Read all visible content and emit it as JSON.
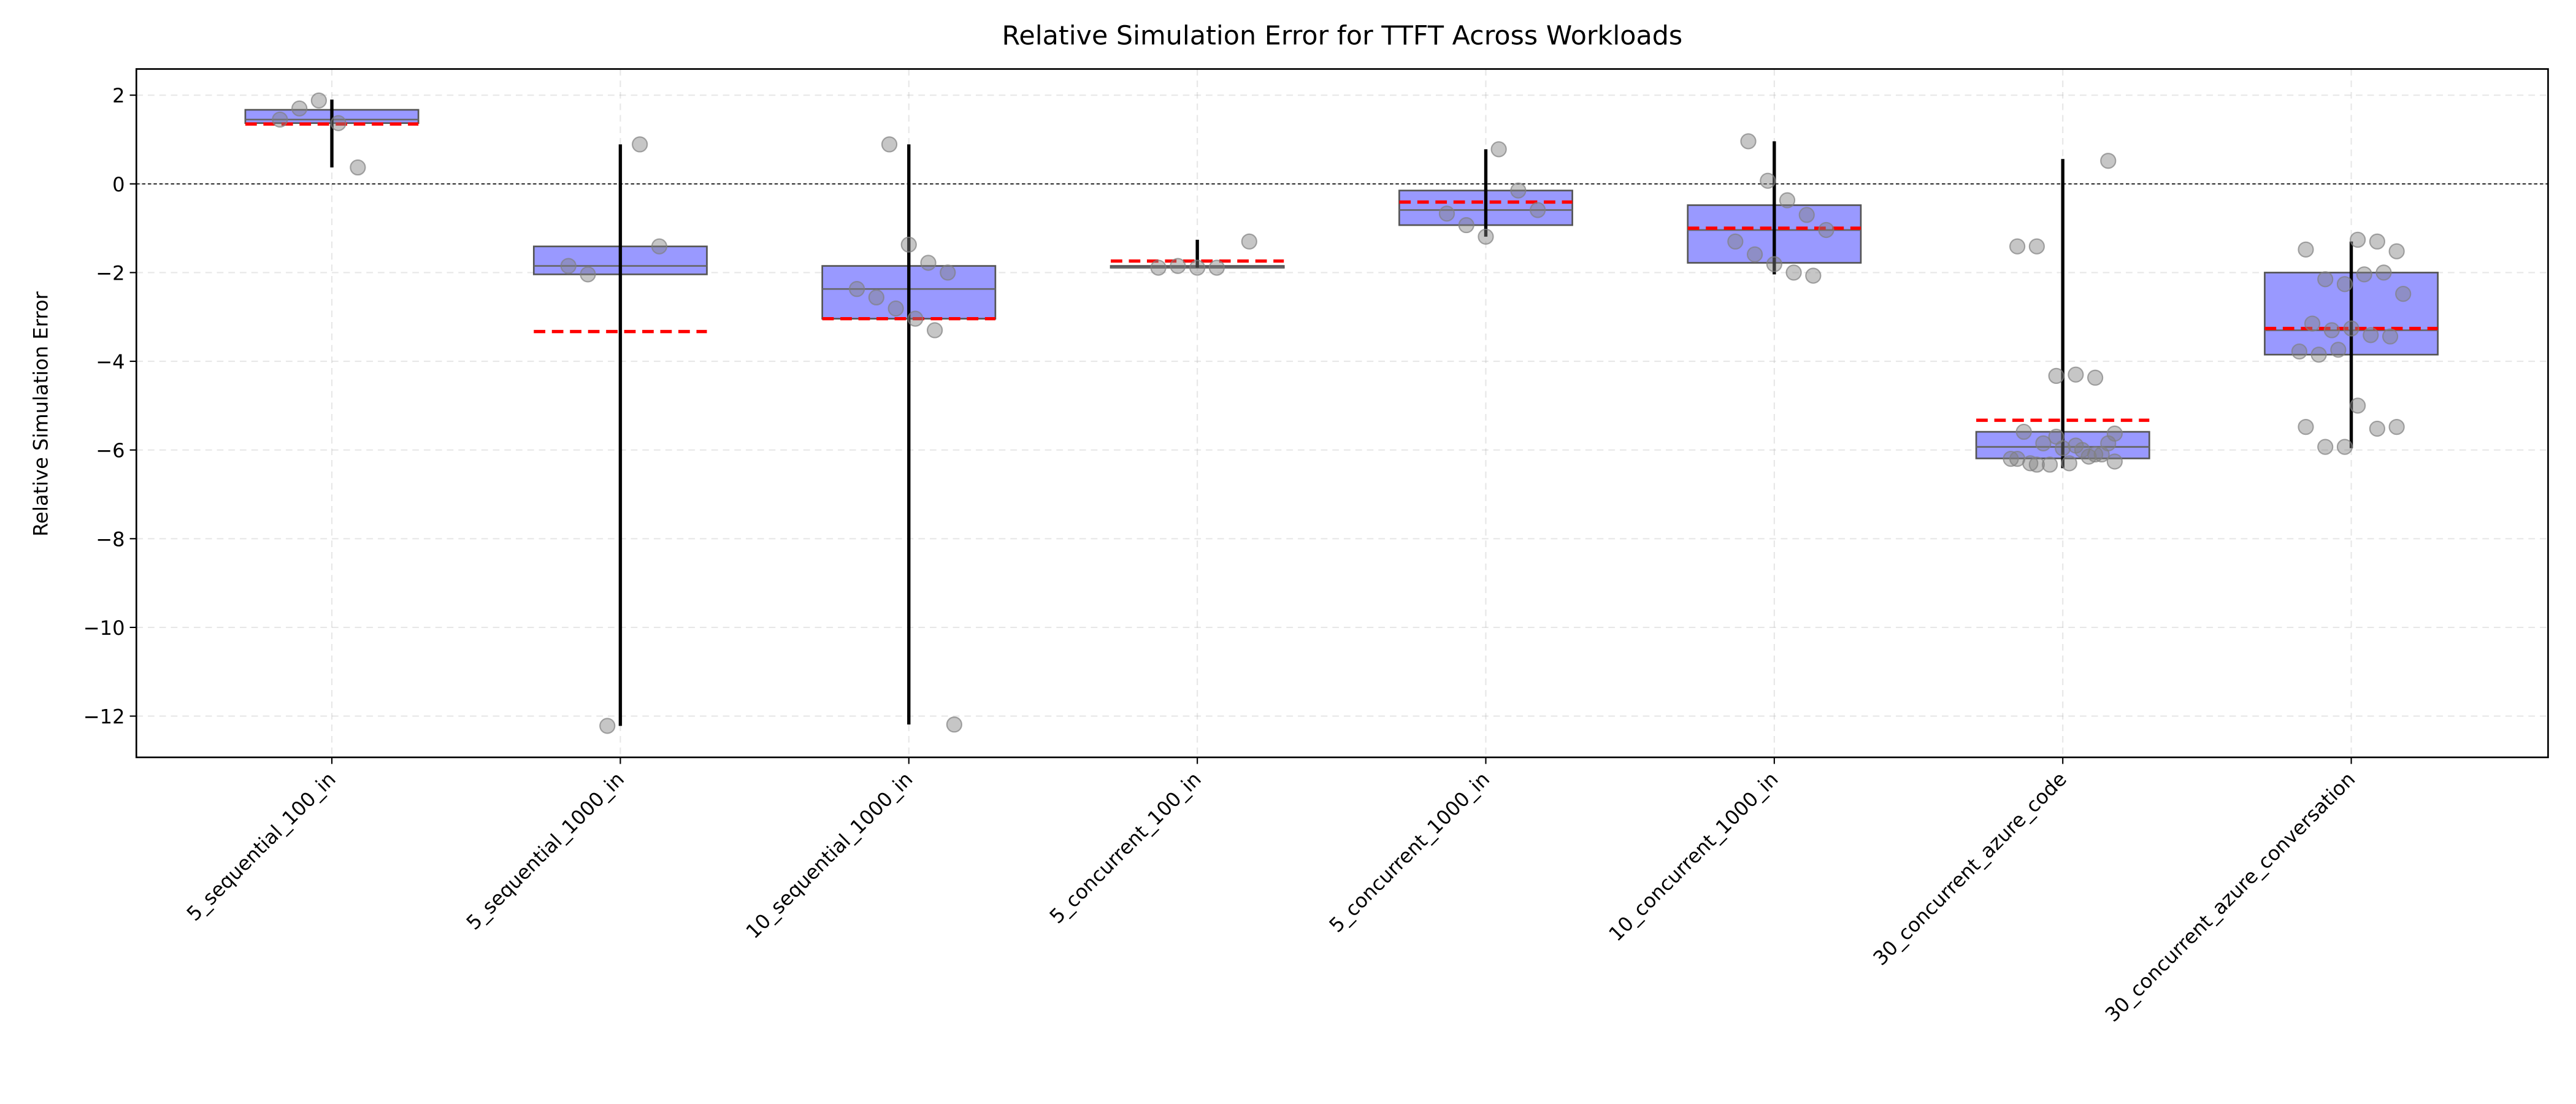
{
  "chart_data": {
    "type": "box",
    "title": "Relative Simulation Error for TTFT Across Workloads",
    "ylabel": "Relative Simulation Error",
    "categories": [
      "5_sequential_100_in",
      "5_sequential_1000_in",
      "10_sequential_1000_in",
      "5_concurrent_100_in",
      "5_concurrent_1000_in",
      "10_concurrent_1000_in",
      "30_concurrent_azure_code",
      "30_concurrent_azure_conversation"
    ],
    "boxes": [
      {
        "q1": 1.37,
        "median": 1.45,
        "q3": 1.67,
        "whislo": 0.37,
        "whishi": 1.9,
        "mean": 1.35,
        "points": [
          1.45,
          1.7,
          1.88,
          1.37,
          0.37
        ]
      },
      {
        "q1": -2.04,
        "median": -1.85,
        "q3": -1.41,
        "whislo": -12.22,
        "whishi": 0.89,
        "mean": -3.33,
        "points": [
          0.89,
          -1.41,
          -1.85,
          -2.04,
          -12.22
        ]
      },
      {
        "q1": -3.04,
        "median": -2.37,
        "q3": -1.85,
        "whislo": -12.19,
        "whishi": 0.89,
        "mean": -3.04,
        "points": [
          0.89,
          -1.37,
          -1.78,
          -2.0,
          -2.37,
          -2.56,
          -2.81,
          -3.04,
          -3.3,
          -12.19
        ]
      },
      {
        "q1": -1.89,
        "median": -1.89,
        "q3": -1.85,
        "whislo": -1.89,
        "whishi": -1.26,
        "mean": -1.74,
        "points": [
          -1.3,
          -1.89,
          -1.85,
          -1.89,
          -1.89
        ]
      },
      {
        "q1": -0.93,
        "median": -0.59,
        "q3": -0.15,
        "whislo": -1.19,
        "whishi": 0.78,
        "mean": -0.41,
        "points": [
          0.78,
          -0.15,
          -0.59,
          -0.67,
          -0.93,
          -1.19
        ]
      },
      {
        "q1": -1.78,
        "median": -1.04,
        "q3": -0.48,
        "whislo": -2.04,
        "whishi": 0.96,
        "mean": -1.0,
        "points": [
          0.96,
          0.07,
          -0.37,
          -0.7,
          -1.04,
          -1.3,
          -1.59,
          -1.81,
          -2.0,
          -2.07
        ]
      },
      {
        "q1": -6.19,
        "median": -5.93,
        "q3": -5.59,
        "whislo": -6.41,
        "whishi": 0.56,
        "mean": -5.33,
        "points": [
          0.52,
          -1.41,
          -1.41,
          -4.33,
          -4.3,
          -4.37,
          -5.63,
          -5.59,
          -5.85,
          -5.96,
          -6.0,
          -6.1,
          -6.2,
          -6.3,
          -6.33,
          -6.3,
          -6.15,
          -5.85,
          -6.2,
          -6.33,
          -5.7,
          -5.9,
          -6.1,
          -6.26
        ]
      },
      {
        "q1": -3.85,
        "median": -3.3,
        "q3": -2.0,
        "whislo": -5.96,
        "whishi": -1.3,
        "mean": -3.26,
        "points": [
          -1.26,
          -1.3,
          -1.52,
          -1.48,
          -2.15,
          -2.26,
          -2.04,
          -2.0,
          -2.48,
          -3.15,
          -3.3,
          -3.26,
          -3.41,
          -3.44,
          -3.78,
          -3.85,
          -3.74,
          -5.0,
          -5.52,
          -5.48,
          -5.48,
          -5.93,
          -5.93
        ]
      }
    ],
    "box_color": "#9999ff",
    "mean_color": "#ff0000",
    "point_color": "#808080",
    "ylim": [
      -12.93,
      2.59
    ],
    "yticks": [
      {
        "value": 2,
        "label": "2"
      },
      {
        "value": 0,
        "label": "0"
      },
      {
        "value": -2,
        "label": "−2"
      },
      {
        "value": -4,
        "label": "−4"
      },
      {
        "value": -6,
        "label": "−6"
      },
      {
        "value": -8,
        "label": "−8"
      },
      {
        "value": -10,
        "label": "−10"
      },
      {
        "value": -12,
        "label": "−12"
      }
    ],
    "grid": true,
    "zero_line": true
  }
}
